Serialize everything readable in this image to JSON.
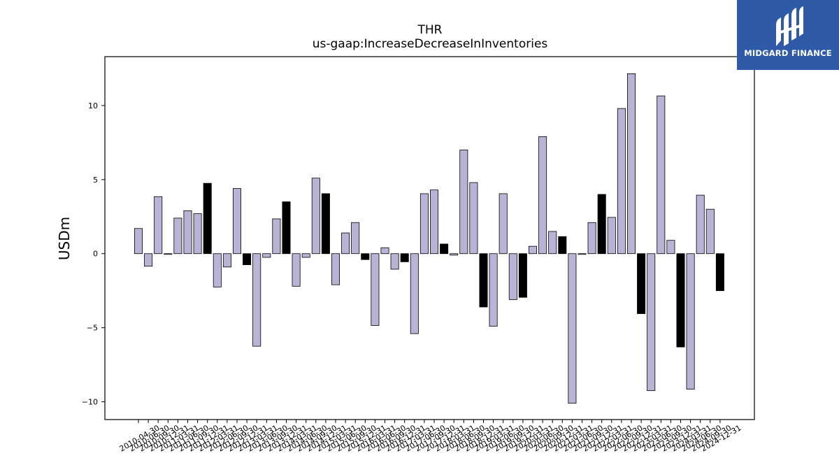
{
  "brand": {
    "name": "MIDGARD FINANCE",
    "color": "#2e5aa8",
    "icon": "midgard-logo-icon"
  },
  "chart_data": {
    "type": "bar",
    "title": "THR",
    "subtitle": "us-gaap:IncreaseDecreaseInInventories",
    "ylabel": "USDm",
    "xlabel": "",
    "ylim": [
      -11.2,
      13.3
    ],
    "yticks": [
      -10,
      -5,
      0,
      5,
      10
    ],
    "ytick_labels": [
      "−10",
      "−5",
      "0",
      "5",
      "10"
    ],
    "colors": {
      "default": "#b9b4d6",
      "highlight": "#000000",
      "edge": "#000000"
    },
    "categories": [
      "2010-04-30",
      "2010-06-30",
      "2010-09-30",
      "2010-12-31",
      "2011-03-31",
      "2011-06-30",
      "2011-09-30",
      "2011-12-31",
      "2012-03-31",
      "2012-06-30",
      "2012-09-30",
      "2012-12-31",
      "2013-03-31",
      "2013-06-30",
      "2013-09-30",
      "2013-12-31",
      "2014-03-31",
      "2014-06-30",
      "2014-09-30",
      "2014-12-31",
      "2015-03-31",
      "2015-06-30",
      "2015-09-30",
      "2015-12-31",
      "2016-03-31",
      "2016-06-30",
      "2016-09-30",
      "2016-12-31",
      "2017-03-31",
      "2017-06-30",
      "2017-09-30",
      "2017-12-31",
      "2018-03-31",
      "2018-06-30",
      "2018-09-30",
      "2018-12-31",
      "2019-03-31",
      "2019-06-30",
      "2019-09-30",
      "2019-12-31",
      "2020-03-31",
      "2020-06-30",
      "2020-09-30",
      "2020-12-31",
      "2021-03-31",
      "2021-06-30",
      "2021-09-30",
      "2021-12-31",
      "2022-03-31",
      "2022-06-30",
      "2022-09-30",
      "2022-12-31",
      "2023-03-31",
      "2023-06-30",
      "2023-09-30",
      "2023-12-31",
      "2024-03-31",
      "2024-06-30",
      "2024-09-30",
      "2024-12-31"
    ],
    "values": [
      1.7,
      -0.85,
      3.85,
      -0.05,
      2.4,
      2.9,
      2.7,
      4.75,
      -2.25,
      -0.9,
      4.4,
      -0.75,
      -6.25,
      -0.25,
      2.35,
      3.5,
      -2.2,
      -0.25,
      5.1,
      4.05,
      -2.1,
      1.4,
      2.1,
      -0.4,
      -4.85,
      0.4,
      -1.05,
      -0.55,
      -5.4,
      4.05,
      4.3,
      0.65,
      -0.1,
      7.0,
      4.8,
      -3.6,
      -4.9,
      4.05,
      -3.1,
      -2.95,
      0.5,
      7.9,
      1.5,
      1.15,
      -10.1,
      -0.05,
      2.1,
      4.0,
      2.45,
      9.8,
      12.15,
      -4.05,
      -9.25,
      10.65,
      0.9,
      -6.3,
      -9.15,
      3.95,
      3.0,
      -2.5
    ],
    "highlight": [
      false,
      false,
      false,
      false,
      false,
      false,
      false,
      true,
      false,
      false,
      false,
      true,
      false,
      false,
      false,
      true,
      false,
      false,
      false,
      true,
      false,
      false,
      false,
      true,
      false,
      false,
      false,
      true,
      false,
      false,
      false,
      true,
      false,
      false,
      false,
      true,
      false,
      false,
      false,
      true,
      false,
      false,
      false,
      true,
      false,
      false,
      false,
      true,
      false,
      false,
      false,
      true,
      false,
      false,
      false,
      true,
      false,
      false,
      false,
      true
    ]
  }
}
